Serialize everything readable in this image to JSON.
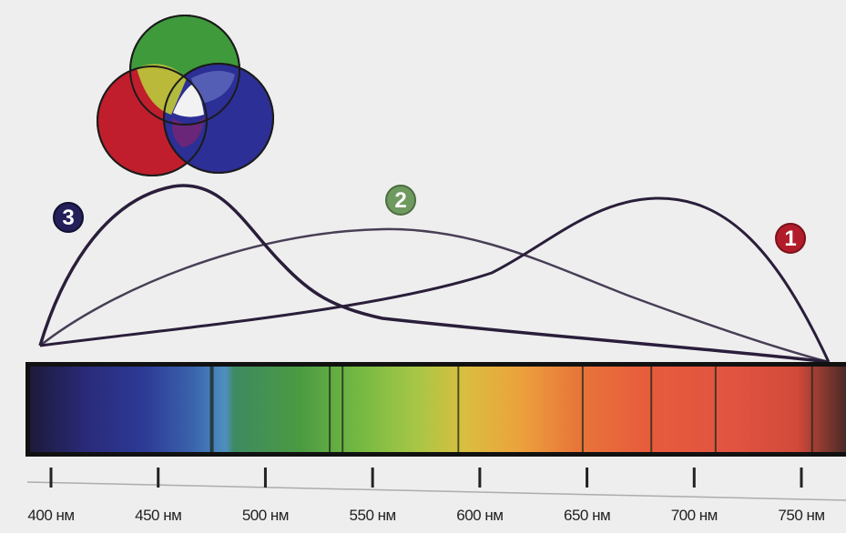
{
  "palette": {
    "background": "#eeeeee",
    "curve": "#2a1e3a",
    "badge_blue": "#23205a",
    "badge_green": "#6f9a5f",
    "badge_red": "#b21c2a",
    "venn_red": "#c01e2c",
    "venn_green": "#3f9a3c",
    "venn_blue": "#2c2f95"
  },
  "venn": {
    "icon": "rgb-additive-venn-icon",
    "circles": [
      "red",
      "green",
      "blue"
    ]
  },
  "curves": [
    {
      "id": "3",
      "color_key": "badge_blue",
      "peak_nm": 445
    },
    {
      "id": "2",
      "color_key": "badge_green",
      "peak_nm": 535
    },
    {
      "id": "1",
      "color_key": "badge_red",
      "peak_nm": 700
    }
  ],
  "axis": {
    "min_nm": 400,
    "max_nm": 750,
    "ticks": [
      {
        "value": 400,
        "label": "400 нм"
      },
      {
        "value": 450,
        "label": "450 нм"
      },
      {
        "value": 500,
        "label": "500 нм"
      },
      {
        "value": 550,
        "label": "550 нм"
      },
      {
        "value": 600,
        "label": "600 нм"
      },
      {
        "value": 650,
        "label": "650 нм"
      },
      {
        "value": 700,
        "label": "700 нм"
      },
      {
        "value": 750,
        "label": "750 нм"
      }
    ]
  },
  "spectrum": {
    "lines_nm": [
      475,
      530,
      536,
      590,
      648,
      680,
      710,
      755
    ]
  }
}
